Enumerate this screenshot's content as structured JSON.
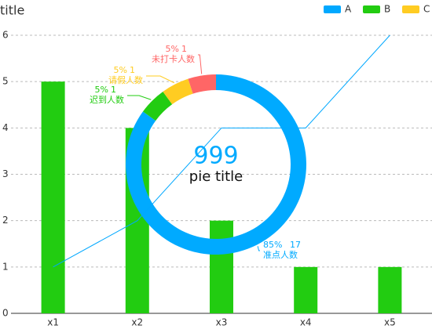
{
  "chart_data": [
    {
      "type": "bar",
      "title": "title",
      "categories": [
        "x1",
        "x2",
        "x3",
        "x4",
        "x5"
      ],
      "series": [
        {
          "name": "A",
          "color": "#00a8ff",
          "type": "line",
          "values": [
            1,
            2,
            4,
            4,
            6
          ]
        },
        {
          "name": "B",
          "color": "#22cc11",
          "type": "bar",
          "values": [
            5,
            4,
            2,
            1,
            1
          ]
        },
        {
          "name": "C",
          "color": "#ffcc22",
          "type": "bar",
          "values": [
            null,
            null,
            null,
            null,
            null
          ]
        }
      ],
      "ylim": [
        0,
        6
      ],
      "yticks": [
        0,
        1,
        2,
        3,
        4,
        5,
        6
      ],
      "grid": true,
      "legend": "top-right"
    },
    {
      "type": "pie",
      "title": "pie title",
      "center_text": "999",
      "labels": [
        "准点人数",
        "迟到人数",
        "请假人数",
        "未打卡人数"
      ],
      "values": [
        17,
        1,
        1,
        1
      ],
      "percent_labels": [
        "85%",
        "5%",
        "5%",
        "5%"
      ],
      "colors": [
        "#00aaff",
        "#22cc11",
        "#ffcc22",
        "#ff6666"
      ]
    }
  ]
}
